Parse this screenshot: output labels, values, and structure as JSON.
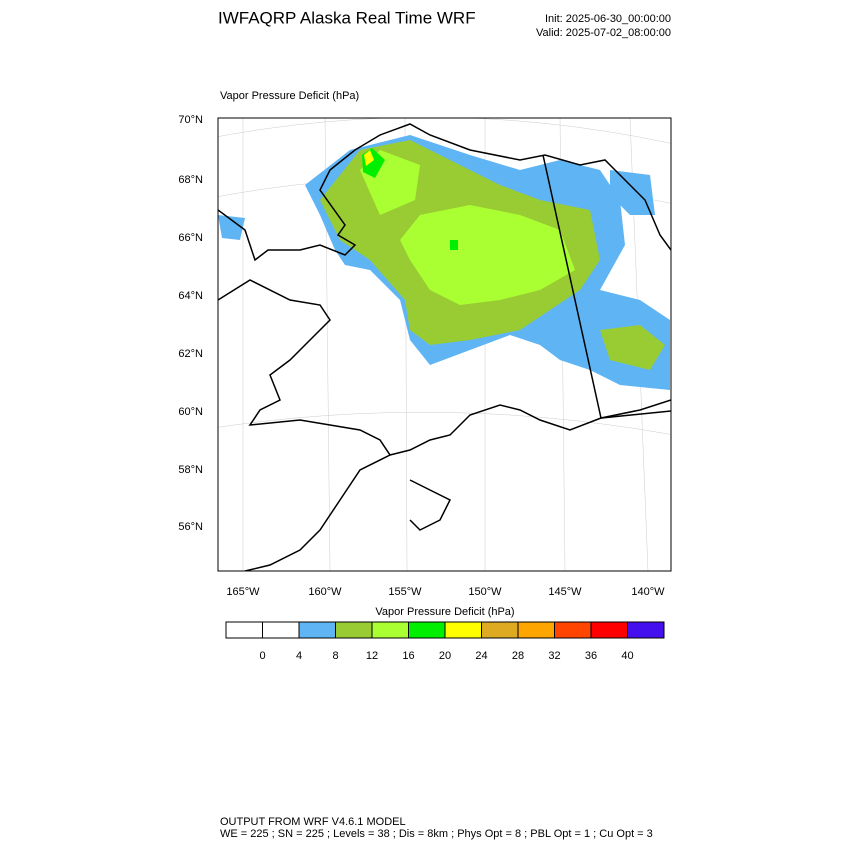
{
  "header": {
    "title": "IWFAQRP Alaska Real Time WRF",
    "init": "Init: 2025-06-30_00:00:00",
    "valid": "Valid: 2025-07-02_08:00:00"
  },
  "map": {
    "field_label": "Vapor Pressure Deficit   (hPa)",
    "lat_labels": [
      "70°N",
      "68°N",
      "66°N",
      "64°N",
      "62°N",
      "60°N",
      "58°N",
      "56°N"
    ],
    "lon_labels": [
      "165°W",
      "160°W",
      "155°W",
      "150°W",
      "145°W",
      "140°W"
    ]
  },
  "colorbar": {
    "title": "Vapor Pressure Deficit  (hPa)",
    "colors": [
      "#ffffff",
      "#ffffff",
      "#5fb4f4",
      "#99cc33",
      "#aaff33",
      "#00ee00",
      "#ffff00",
      "#ddaa22",
      "#ffa500",
      "#ff4500",
      "#ff0000",
      "#4411ee"
    ],
    "labels": [
      0,
      4,
      8,
      12,
      16,
      20,
      24,
      28,
      32,
      36,
      40
    ]
  },
  "footer": {
    "line1": "OUTPUT FROM WRF V4.6.1 MODEL",
    "line2": "WE = 225 ; SN = 225 ; Levels = 38 ; Dis = 8km ; Phys Opt = 8 ; PBL Opt = 1 ; Cu Opt = 3"
  }
}
